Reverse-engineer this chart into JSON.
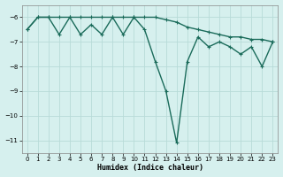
{
  "xlabel": "Humidex (Indice chaleur)",
  "background_color": "#d6f0ee",
  "line_color": "#1a6b5a",
  "line1_x": [
    0,
    1,
    2,
    3,
    4,
    5,
    6,
    7,
    8,
    9,
    10,
    11,
    12,
    13,
    14,
    15,
    16,
    17,
    18,
    19,
    20,
    21,
    22,
    23
  ],
  "line1_y": [
    -6.5,
    -6.0,
    -6.0,
    -6.0,
    -6.0,
    -6.0,
    -6.0,
    -6.0,
    -6.0,
    -6.0,
    -6.0,
    -6.0,
    -6.0,
    -6.1,
    -6.2,
    -6.4,
    -6.5,
    -6.6,
    -6.7,
    -6.8,
    -6.8,
    -6.9,
    -6.9,
    -7.0
  ],
  "line2_x": [
    0,
    1,
    2,
    3,
    4,
    5,
    6,
    7,
    8,
    9,
    10,
    11,
    12,
    13,
    14,
    15,
    16,
    17,
    18,
    19,
    20,
    21,
    22,
    23
  ],
  "line2_y": [
    -6.5,
    -6.0,
    -6.0,
    -6.7,
    -6.0,
    -6.7,
    -6.3,
    -6.7,
    -6.0,
    -6.7,
    -6.0,
    -6.5,
    -7.8,
    -9.0,
    -11.1,
    -7.8,
    -6.8,
    -7.2,
    -7.0,
    -7.2,
    -7.5,
    -7.2,
    -8.0,
    -7.0
  ],
  "ylim": [
    -11.5,
    -5.5
  ],
  "xlim": [
    -0.5,
    23.5
  ],
  "yticks": [
    -11,
    -10,
    -9,
    -8,
    -7,
    -6
  ],
  "xticks": [
    0,
    1,
    2,
    3,
    4,
    5,
    6,
    7,
    8,
    9,
    10,
    11,
    12,
    13,
    14,
    15,
    16,
    17,
    18,
    19,
    20,
    21,
    22,
    23
  ],
  "grid_color": "#b8dbd8",
  "markersize": 2.5,
  "linewidth": 1.0
}
